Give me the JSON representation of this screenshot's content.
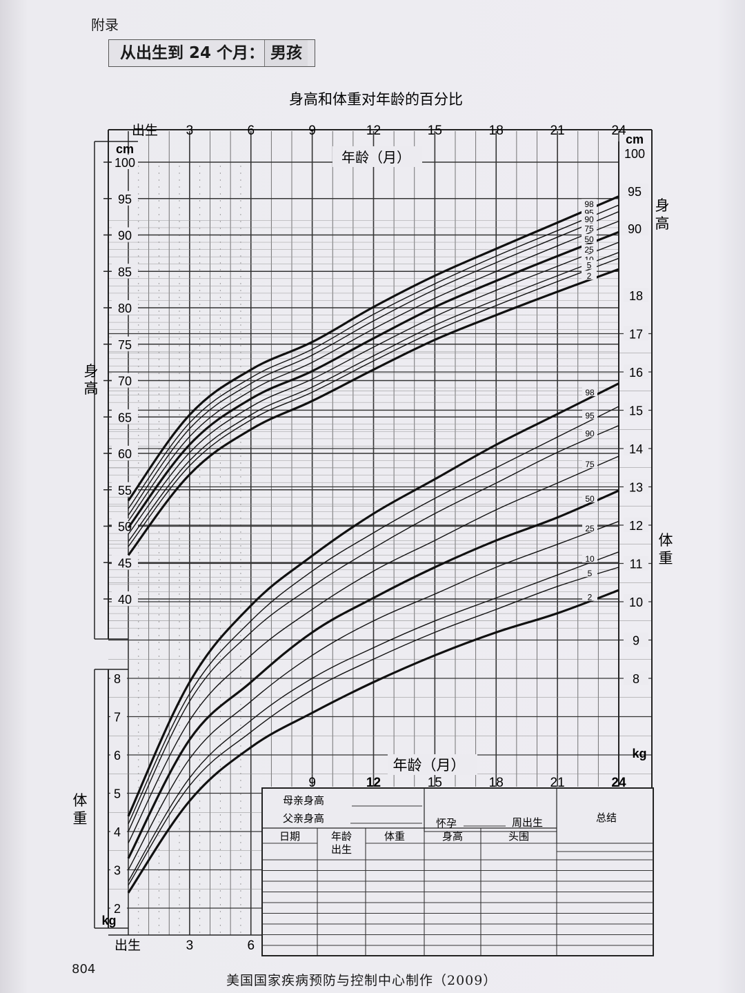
{
  "header": {
    "appendix": "附录",
    "subtitle": "从出生到 24 个月：",
    "gender": "男孩"
  },
  "page_number": "804",
  "footer": "美国国家疾病预防与控制中心制作（2009）",
  "chart_data": {
    "type": "line",
    "title": "身高和体重对年龄的百分比",
    "x_axis_label": "年龄（月）",
    "x_ticks_top": [
      "出生",
      "3",
      "6",
      "9",
      "12",
      "15",
      "18",
      "21",
      "24"
    ],
    "x_ticks_bottom": [
      "出生",
      "3",
      "6"
    ],
    "x_ticks_bottom_right": [
      "9",
      "12",
      "15",
      "18",
      "21",
      "24"
    ],
    "x": [
      0,
      3,
      6,
      9,
      12,
      15,
      18,
      21,
      24
    ],
    "xlim": [
      0,
      24
    ],
    "grid": true,
    "length": {
      "label": "身高",
      "unit": "cm",
      "ylim": [
        35,
        100
      ],
      "left_ticks": [
        "100",
        "95",
        "90",
        "85",
        "80",
        "75",
        "70",
        "65",
        "60",
        "55",
        "50",
        "45",
        "40"
      ],
      "right_ticks": [
        "100",
        "95",
        "90"
      ],
      "series": [
        {
          "name": "98",
          "values": [
            53.5,
            65.3,
            71.5,
            75.3,
            80.1,
            84.4,
            88.1,
            91.7,
            95.3
          ]
        },
        {
          "name": "95",
          "values": [
            52.4,
            64.2,
            70.4,
            74.3,
            79.1,
            83.3,
            87.1,
            90.6,
            94.1
          ]
        },
        {
          "name": "90",
          "values": [
            51.5,
            63.4,
            69.6,
            73.5,
            78.2,
            82.5,
            86.2,
            89.7,
            93.2
          ]
        },
        {
          "name": "75",
          "values": [
            50.7,
            62.3,
            68.6,
            72.5,
            77.1,
            81.3,
            85.0,
            88.5,
            91.9
          ]
        },
        {
          "name": "50",
          "values": [
            49.8,
            61.2,
            67.5,
            71.3,
            75.8,
            80.1,
            83.7,
            87.1,
            90.4
          ]
        },
        {
          "name": "25",
          "values": [
            48.9,
            60.1,
            66.4,
            70.2,
            74.6,
            78.8,
            82.4,
            85.7,
            89.0
          ]
        },
        {
          "name": "10",
          "values": [
            47.9,
            59.0,
            65.3,
            69.1,
            73.4,
            77.6,
            81.1,
            84.4,
            87.6
          ]
        },
        {
          "name": "5",
          "values": [
            47.2,
            58.3,
            64.6,
            68.4,
            72.7,
            76.8,
            80.3,
            83.6,
            86.8
          ]
        },
        {
          "name": "2",
          "values": [
            46.0,
            57.1,
            63.3,
            67.2,
            71.5,
            75.6,
            79.0,
            82.2,
            85.3
          ]
        }
      ]
    },
    "weight": {
      "label": "体重",
      "unit": "kg",
      "ylim": [
        1.5,
        18.5
      ],
      "left_ticks": [
        "8",
        "7",
        "6",
        "5",
        "4",
        "3",
        "2"
      ],
      "right_ticks": [
        "18",
        "17",
        "16",
        "15",
        "14",
        "13",
        "12",
        "11",
        "10",
        "9",
        "8"
      ],
      "series": [
        {
          "name": "98",
          "values": [
            4.4,
            7.9,
            9.9,
            11.2,
            12.3,
            13.2,
            14.1,
            14.9,
            15.7
          ]
        },
        {
          "name": "95",
          "values": [
            4.2,
            7.6,
            9.5,
            10.8,
            11.8,
            12.7,
            13.5,
            14.3,
            15.1
          ]
        },
        {
          "name": "90",
          "values": [
            4.0,
            7.4,
            9.2,
            10.4,
            11.4,
            12.3,
            13.1,
            13.9,
            14.6
          ]
        },
        {
          "name": "75",
          "values": [
            3.7,
            6.9,
            8.6,
            9.8,
            10.8,
            11.6,
            12.4,
            13.1,
            13.8
          ]
        },
        {
          "name": "50",
          "values": [
            3.3,
            6.4,
            7.9,
            9.2,
            10.1,
            10.9,
            11.6,
            12.2,
            12.9
          ]
        },
        {
          "name": "25",
          "values": [
            3.0,
            5.9,
            7.4,
            8.6,
            9.5,
            10.2,
            10.9,
            11.5,
            12.1
          ]
        },
        {
          "name": "10",
          "values": [
            2.7,
            5.4,
            6.9,
            8.0,
            8.8,
            9.5,
            10.1,
            10.7,
            11.3
          ]
        },
        {
          "name": "5",
          "values": [
            2.6,
            5.2,
            6.6,
            7.7,
            8.5,
            9.2,
            9.8,
            10.4,
            10.9
          ]
        },
        {
          "name": "2",
          "values": [
            2.4,
            4.8,
            6.2,
            7.1,
            7.9,
            8.6,
            9.2,
            9.7,
            10.3
          ]
        }
      ]
    },
    "record_table": {
      "mother_height": "母亲身高",
      "father_height": "父亲身高",
      "pregnancy": "怀孕",
      "weeks_birth": "周出生",
      "summary": "总结",
      "columns": [
        "日期",
        "年龄",
        "体重",
        "身高",
        "头围"
      ],
      "age_sub": "出生"
    }
  }
}
